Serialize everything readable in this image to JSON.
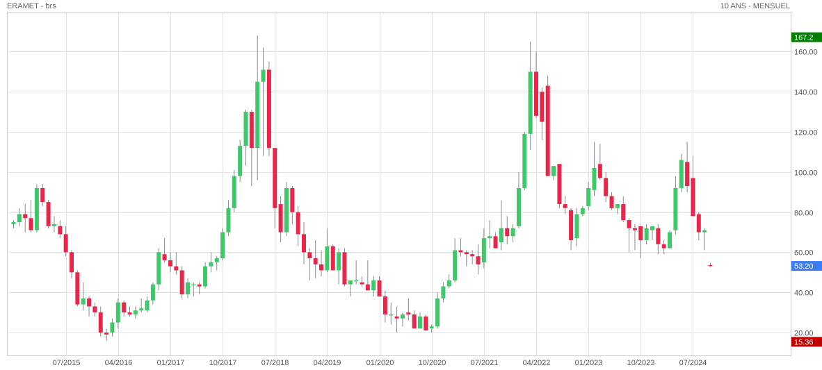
{
  "header": {
    "title": "ERAMET - brs",
    "period": "10 ANS - MENSUEL"
  },
  "colors": {
    "up": "#3ec86a",
    "down": "#e8264a",
    "wick": "#888888",
    "grid": "#e2e2e2",
    "tag_high": "#008000",
    "tag_last": "#3c7df2",
    "tag_low": "#c00000"
  },
  "chart_data": {
    "type": "candlestick",
    "title": "ERAMET - brs",
    "xlabel": "",
    "ylabel": "",
    "ylim": [
      10,
      175
    ],
    "yticks": [
      20,
      40,
      60,
      80,
      100,
      120,
      140,
      160
    ],
    "ytick_labels": [
      "20.00",
      "40.00",
      "60.00",
      "80.00",
      "100.00",
      "120.00",
      "140.00",
      "160.00"
    ],
    "xticks": [
      {
        "index": 9,
        "label": "07/2015"
      },
      {
        "index": 18,
        "label": "04/2016"
      },
      {
        "index": 27,
        "label": "01/2017"
      },
      {
        "index": 36,
        "label": "10/2017"
      },
      {
        "index": 45,
        "label": "07/2018"
      },
      {
        "index": 54,
        "label": "04/2019"
      },
      {
        "index": 63,
        "label": "01/2020"
      },
      {
        "index": 72,
        "label": "10/2020"
      },
      {
        "index": 81,
        "label": "07/2021"
      },
      {
        "index": 90,
        "label": "04/2022"
      },
      {
        "index": 99,
        "label": "01/2023"
      },
      {
        "index": 108,
        "label": "10/2023"
      },
      {
        "index": 117,
        "label": "07/2024"
      }
    ],
    "grid": true,
    "price_tags": {
      "high": {
        "value": 167.2,
        "label": "167.2"
      },
      "last": {
        "value": 53.2,
        "label": "53.20"
      },
      "low": {
        "value": 15.36,
        "label": "15.36"
      }
    },
    "ohlc": [
      [
        74,
        76,
        72,
        75
      ],
      [
        75,
        82,
        73,
        79
      ],
      [
        79,
        84,
        70,
        77
      ],
      [
        77,
        86,
        70,
        71
      ],
      [
        71,
        94,
        70,
        92
      ],
      [
        92,
        94,
        83,
        85
      ],
      [
        85,
        86,
        72,
        73
      ],
      [
        73,
        78,
        70,
        74
      ],
      [
        73,
        76,
        67,
        69
      ],
      [
        69,
        73,
        58,
        60
      ],
      [
        60,
        61,
        47,
        50
      ],
      [
        50,
        51,
        33,
        34
      ],
      [
        34,
        45,
        31,
        37
      ],
      [
        37,
        38,
        28,
        33
      ],
      [
        33,
        35,
        28,
        30
      ],
      [
        30,
        33,
        18,
        20
      ],
      [
        20,
        22,
        16,
        19
      ],
      [
        20,
        27,
        18,
        25
      ],
      [
        25,
        37,
        22,
        35
      ],
      [
        35,
        36,
        28,
        30
      ],
      [
        30,
        33,
        28,
        29
      ],
      [
        29,
        33,
        27,
        31
      ],
      [
        31,
        37,
        30,
        32
      ],
      [
        31,
        38,
        30,
        36
      ],
      [
        36,
        45,
        34,
        44
      ],
      [
        44,
        62,
        41,
        60
      ],
      [
        59,
        67,
        55,
        56
      ],
      [
        56,
        60,
        50,
        53
      ],
      [
        53,
        60,
        49,
        51
      ],
      [
        51,
        53,
        37,
        39
      ],
      [
        39,
        47,
        37,
        45
      ],
      [
        44,
        45,
        38,
        44
      ],
      [
        44,
        45,
        39,
        43
      ],
      [
        43,
        55,
        42,
        53
      ],
      [
        53,
        60,
        50,
        55
      ],
      [
        55,
        58,
        51,
        57
      ],
      [
        57,
        72,
        56,
        70
      ],
      [
        70,
        86,
        68,
        82
      ],
      [
        82,
        101,
        80,
        98
      ],
      [
        98,
        116,
        95,
        113
      ],
      [
        113,
        131,
        103,
        130
      ],
      [
        130,
        131,
        93,
        112
      ],
      [
        112,
        168,
        96,
        145
      ],
      [
        145,
        162,
        108,
        151
      ],
      [
        151,
        155,
        108,
        112
      ],
      [
        112,
        112,
        72,
        82
      ],
      [
        84,
        88,
        65,
        70
      ],
      [
        70,
        95,
        68,
        92
      ],
      [
        92,
        93,
        74,
        80
      ],
      [
        80,
        83,
        63,
        69
      ],
      [
        69,
        75,
        54,
        60
      ],
      [
        60,
        62,
        46,
        57
      ],
      [
        57,
        66,
        47,
        54
      ],
      [
        54,
        61,
        48,
        51
      ],
      [
        51,
        72,
        50,
        63
      ],
      [
        63,
        64,
        51,
        51
      ],
      [
        51,
        62,
        44,
        60
      ],
      [
        60,
        62,
        43,
        44
      ],
      [
        44,
        45,
        38,
        46
      ],
      [
        46,
        56,
        44,
        46
      ],
      [
        45,
        48,
        43,
        44
      ],
      [
        44,
        56,
        41,
        41
      ],
      [
        41,
        48,
        38,
        46
      ],
      [
        46,
        48,
        38,
        38
      ],
      [
        38,
        41,
        25,
        29
      ],
      [
        29,
        35,
        24,
        29
      ],
      [
        28,
        33,
        20,
        27
      ],
      [
        27,
        30,
        23,
        29
      ],
      [
        30,
        37,
        26,
        29
      ],
      [
        29,
        31,
        23,
        22
      ],
      [
        22,
        30,
        22,
        28
      ],
      [
        28,
        29,
        21,
        21
      ],
      [
        22,
        24,
        20,
        23
      ],
      [
        23,
        40,
        22,
        37
      ],
      [
        37,
        45,
        35,
        43
      ],
      [
        43,
        49,
        42,
        46
      ],
      [
        46,
        67,
        45,
        61
      ],
      [
        61,
        67,
        58,
        60
      ],
      [
        60,
        61,
        53,
        59
      ],
      [
        59,
        61,
        54,
        58
      ],
      [
        58,
        64,
        49,
        54
      ],
      [
        55,
        72,
        52,
        67
      ],
      [
        67,
        76,
        62,
        68
      ],
      [
        68,
        70,
        62,
        62
      ],
      [
        65,
        86,
        61,
        72
      ],
      [
        72,
        78,
        64,
        68
      ],
      [
        68,
        74,
        65,
        72
      ],
      [
        73,
        100,
        72,
        92
      ],
      [
        92,
        120,
        91,
        119
      ],
      [
        119,
        165,
        111,
        150
      ],
      [
        150,
        160,
        127,
        128
      ],
      [
        140,
        142,
        116,
        125
      ],
      [
        143,
        148,
        98,
        98
      ],
      [
        98,
        102,
        96,
        103
      ],
      [
        104,
        104,
        82,
        84
      ],
      [
        84,
        88,
        79,
        82
      ],
      [
        81,
        82,
        61,
        66
      ],
      [
        67,
        82,
        63,
        79
      ],
      [
        79,
        83,
        78,
        82
      ],
      [
        83,
        95,
        81,
        92
      ],
      [
        91,
        115,
        88,
        102
      ],
      [
        104,
        114,
        96,
        97
      ],
      [
        97,
        100,
        85,
        88
      ],
      [
        88,
        90,
        81,
        82
      ],
      [
        82,
        83,
        79,
        84
      ],
      [
        84,
        88,
        75,
        76
      ],
      [
        76,
        77,
        60,
        72
      ],
      [
        72,
        74,
        61,
        71
      ],
      [
        73,
        73,
        57,
        66
      ],
      [
        66,
        74,
        64,
        72
      ],
      [
        71,
        73,
        66,
        73
      ],
      [
        72,
        74,
        59,
        64
      ],
      [
        64,
        66,
        59,
        62
      ],
      [
        62,
        71,
        62,
        70
      ],
      [
        71,
        98,
        69,
        92
      ],
      [
        92,
        109,
        90,
        106
      ],
      [
        105,
        115,
        90,
        93
      ],
      [
        97,
        108,
        78,
        78
      ],
      [
        79,
        80,
        66,
        70
      ],
      [
        70,
        72,
        61,
        71
      ],
      [
        53.6,
        54.8,
        52.6,
        53.2
      ]
    ]
  }
}
